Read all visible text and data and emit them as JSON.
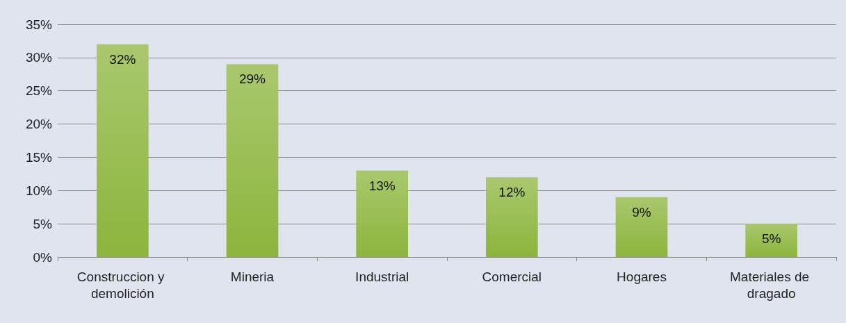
{
  "chart_data": {
    "type": "bar",
    "categories": [
      "Construccion y demolición",
      "Mineria",
      "Industrial",
      "Comercial",
      "Hogares",
      "Materiales de dragado"
    ],
    "values": [
      32,
      29,
      13,
      12,
      9,
      5
    ],
    "value_labels": [
      "32%",
      "29%",
      "13%",
      "12%",
      "9%",
      "5%"
    ],
    "color": "#8cb53c",
    "ylim": [
      0,
      35
    ],
    "yticks": [
      {
        "value": 0,
        "label": "0%"
      },
      {
        "value": 5,
        "label": "5%"
      },
      {
        "value": 10,
        "label": "10%"
      },
      {
        "value": 15,
        "label": "15%"
      },
      {
        "value": 20,
        "label": "20%"
      },
      {
        "value": 25,
        "label": "25%"
      },
      {
        "value": 30,
        "label": "30%"
      },
      {
        "value": 35,
        "label": "35%"
      }
    ],
    "grid": "y"
  }
}
